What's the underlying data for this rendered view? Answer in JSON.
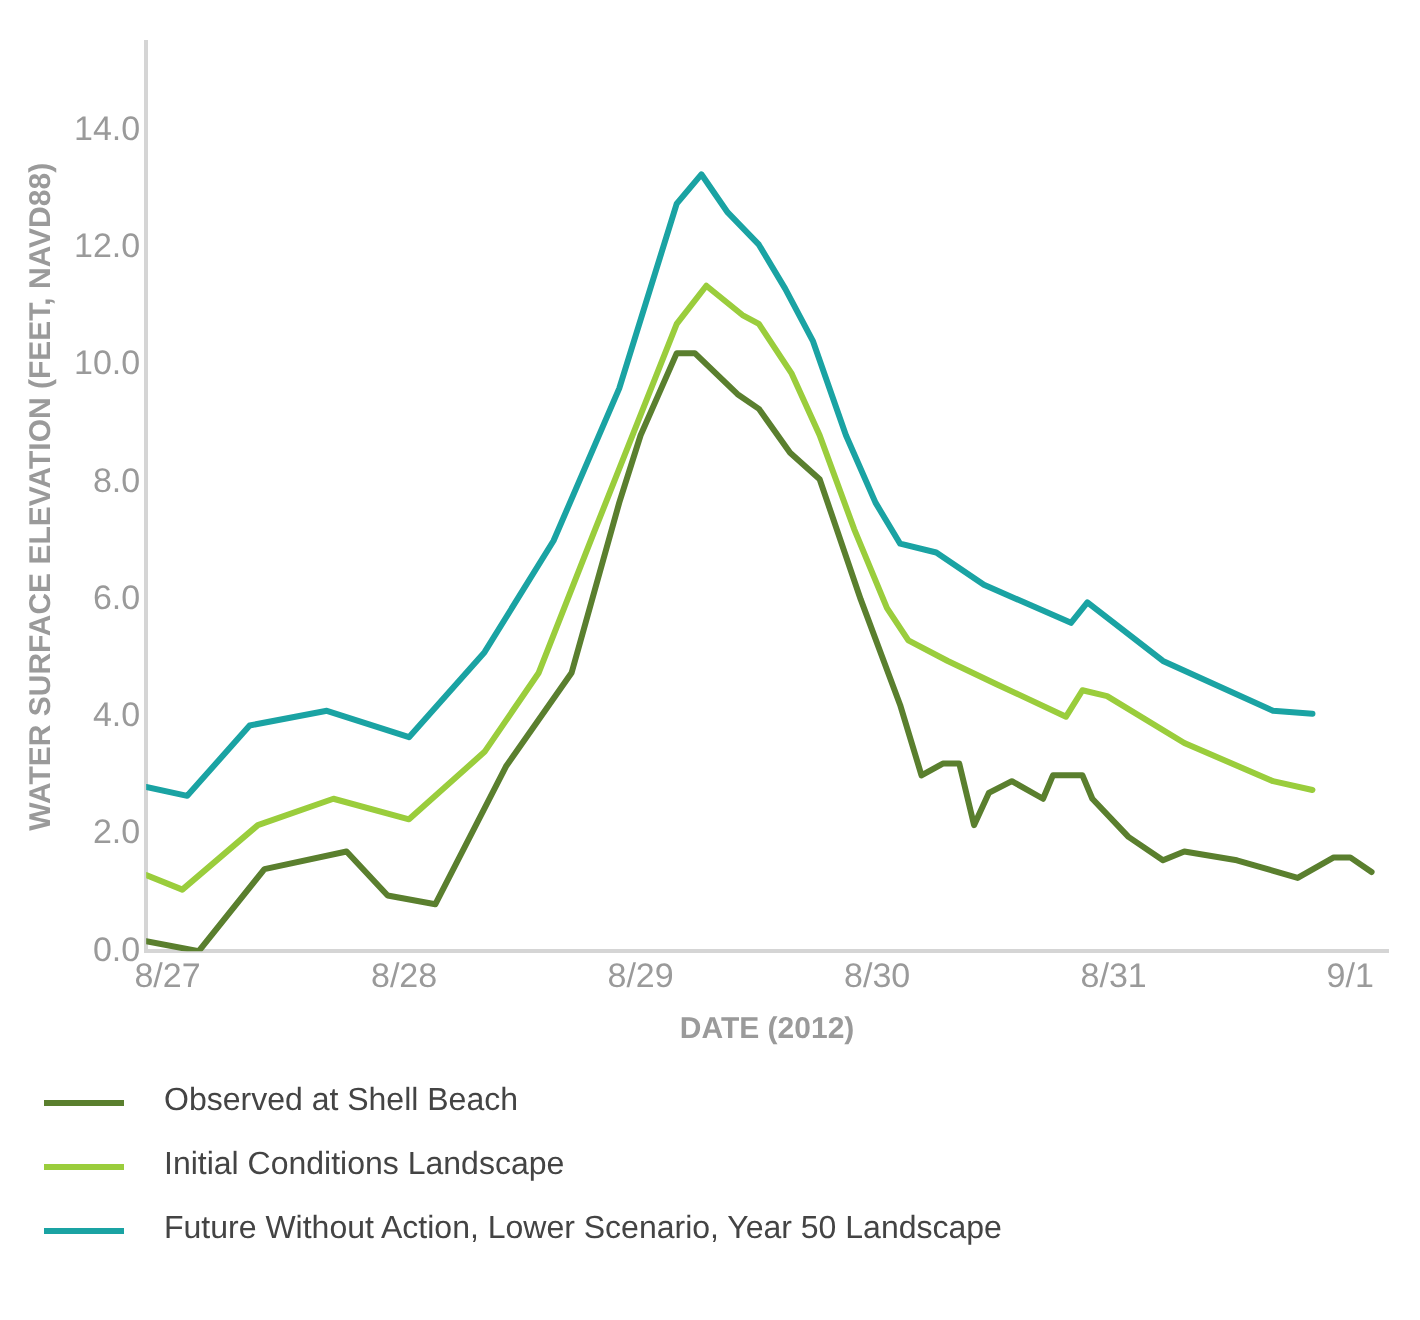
{
  "chart_data": {
    "type": "line",
    "xlabel": "DATE (2012)",
    "ylabel": "WATER SURFACE ELEVATION (FEET, NAVD88)",
    "xlim": [
      "--08-26T21:50",
      "--09-01T03:50"
    ],
    "ylim": [
      0,
      15.5
    ],
    "xticks": [
      {
        "value": "--08-27",
        "label": "8/27"
      },
      {
        "value": "--08-28",
        "label": "8/28"
      },
      {
        "value": "--08-29",
        "label": "8/29"
      },
      {
        "value": "--08-30",
        "label": "8/30"
      },
      {
        "value": "--08-31",
        "label": "8/31"
      },
      {
        "value": "--09-01",
        "label": "9/1"
      }
    ],
    "yticks": [
      {
        "value": 0,
        "label": "0.0"
      },
      {
        "value": 2,
        "label": "2.0"
      },
      {
        "value": 4,
        "label": "4.0"
      },
      {
        "value": 6,
        "label": "6.0"
      },
      {
        "value": 8,
        "label": "8.0"
      },
      {
        "value": 10,
        "label": "10.0"
      },
      {
        "value": 12,
        "label": "12.0"
      },
      {
        "value": 14,
        "label": "14.0"
      }
    ],
    "grid": false,
    "legend": "bottom",
    "marker": "none",
    "line_style": "solid",
    "series": [
      {
        "name": "Observed at Shell Beach",
        "color": "#5a7f2e",
        "x": [
          "--08-26T21:50",
          "--08-27T03:10",
          "--08-27T09:50",
          "--08-27T18:10",
          "--08-27T22:20",
          "--08-28T03:10",
          "--08-28T10:20",
          "--08-28T17:00",
          "--08-28T21:50",
          "--08-29T00:00",
          "--08-29T03:40",
          "--08-29T05:30",
          "--08-29T09:50",
          "--08-29T12:00",
          "--08-29T15:10",
          "--08-29T18:10",
          "--08-29T22:20",
          "--08-30T02:20",
          "--08-30T04:30",
          "--08-30T06:40",
          "--08-30T08:20",
          "--08-30T09:50",
          "--08-30T11:20",
          "--08-30T13:40",
          "--08-30T16:50",
          "--08-30T17:50",
          "--08-30T20:50",
          "--08-30T21:50",
          "--08-31T01:30",
          "--08-31T05:00",
          "--08-31T07:10",
          "--08-31T12:30",
          "--08-31T18:40",
          "--08-31T22:20",
          "--09-01T00:00",
          "--09-01T02:10"
        ],
        "values": [
          0.17,
          0.0,
          1.4,
          1.7,
          0.95,
          0.8,
          3.15,
          4.75,
          7.65,
          8.8,
          10.2,
          10.2,
          9.5,
          9.25,
          8.5,
          8.05,
          6.0,
          4.2,
          3.0,
          3.2,
          3.2,
          2.15,
          2.7,
          2.9,
          2.6,
          3.0,
          3.0,
          2.6,
          1.95,
          1.55,
          1.7,
          1.55,
          1.25,
          1.6,
          1.6,
          1.35
        ]
      },
      {
        "name": "Initial Conditions Landscape",
        "color": "#9acd3c",
        "x": [
          "--08-26T21:50",
          "--08-27T01:30",
          "--08-27T09:10",
          "--08-27T16:50",
          "--08-28T00:30",
          "--08-28T08:10",
          "--08-28T13:40",
          "--08-28T19:10",
          "--08-29T03:40",
          "--08-29T06:40",
          "--08-29T10:20",
          "--08-29T12:00",
          "--08-29T15:20",
          "--08-29T18:10",
          "--08-29T21:40",
          "--08-30T01:00",
          "--08-30T03:10",
          "--08-30T07:10",
          "--08-30T12:10",
          "--08-30T19:10",
          "--08-30T20:50",
          "--08-30T23:20",
          "--08-31T07:10",
          "--08-31T16:10",
          "--08-31T20:10"
        ],
        "values": [
          1.3,
          1.05,
          2.15,
          2.6,
          2.25,
          3.4,
          4.75,
          7.1,
          10.7,
          11.35,
          10.85,
          10.7,
          9.85,
          8.8,
          7.2,
          5.85,
          5.3,
          4.95,
          4.55,
          4.0,
          4.45,
          4.35,
          3.55,
          2.9,
          2.75
        ]
      },
      {
        "name": "Future Without Action, Lower Scenario, Year 50 Landscape",
        "color": "#1aa3a3",
        "x": [
          "--08-26T21:50",
          "--08-27T02:00",
          "--08-27T08:20",
          "--08-27T16:10",
          "--08-28T00:30",
          "--08-28T08:10",
          "--08-28T15:10",
          "--08-28T21:50",
          "--08-29T03:40",
          "--08-29T06:10",
          "--08-29T08:50",
          "--08-29T12:00",
          "--08-29T14:40",
          "--08-29T17:30",
          "--08-29T20:50",
          "--08-29T23:50",
          "--08-30T02:20",
          "--08-30T06:00",
          "--08-30T10:50",
          "--08-30T19:40",
          "--08-30T21:20",
          "--08-31T05:00",
          "--08-31T16:10",
          "--08-31T20:10"
        ],
        "values": [
          2.8,
          2.65,
          3.85,
          4.1,
          3.65,
          5.1,
          7.0,
          9.6,
          12.75,
          13.25,
          12.6,
          12.05,
          11.3,
          10.4,
          8.8,
          7.65,
          6.95,
          6.8,
          6.25,
          5.6,
          5.95,
          4.95,
          4.1,
          4.05
        ]
      }
    ]
  }
}
